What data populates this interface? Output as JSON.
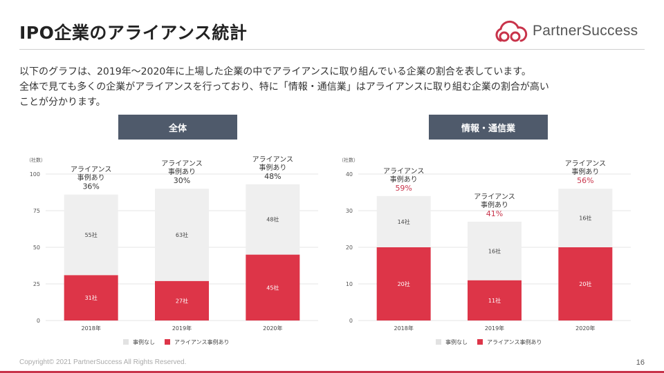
{
  "header": {
    "title": "IPO企業のアライアンス統計"
  },
  "logo": {
    "text": "PartnerSuccess"
  },
  "description": {
    "lines": [
      "以下のグラフは、2019年〜2020年に上場した企業の中でアライアンスに取り組んでいる企業の割合を表しています。",
      "全体で見ても多くの企業がアライアンスを行っており、特に「情報・通信業」はアライアンスに取り組む企業の割合が高い",
      "ことが分かります。"
    ]
  },
  "colors": {
    "alliance": "#dd3548",
    "none": "#efefef",
    "header_bg": "#4f5a6b",
    "accent": "#c8334a"
  },
  "chart_data": [
    {
      "type": "bar",
      "stacked": true,
      "title": "全体",
      "unit_label": "（社数）",
      "categories": [
        "2018年",
        "2019年",
        "2020年"
      ],
      "series": [
        {
          "name": "アライアンス事例あり",
          "values": [
            31,
            27,
            45
          ],
          "labels": [
            "31社",
            "27社",
            "45社"
          ]
        },
        {
          "name": "事例なし",
          "values": [
            55,
            63,
            48
          ],
          "labels": [
            "55社",
            "63社",
            "48社"
          ]
        }
      ],
      "annotations": [
        {
          "text": "アライアンス\n事例あり",
          "pct": "36%"
        },
        {
          "text": "アライアンス\n事例あり",
          "pct": "30%"
        },
        {
          "text": "アライアンス\n事例あり",
          "pct": "48%"
        }
      ],
      "pct_color": "#333333",
      "yticks": [
        0,
        25,
        50,
        75,
        100
      ],
      "ylim": [
        0,
        100
      ],
      "legend": [
        "事例なし",
        "アライアンス事例あり"
      ]
    },
    {
      "type": "bar",
      "stacked": true,
      "title": "情報・通信業",
      "unit_label": "（社数）",
      "categories": [
        "2018年",
        "2019年",
        "2020年"
      ],
      "series": [
        {
          "name": "アライアンス事例あり",
          "values": [
            20,
            11,
            20
          ],
          "labels": [
            "20社",
            "11社",
            "20社"
          ]
        },
        {
          "name": "事例なし",
          "values": [
            14,
            16,
            16
          ],
          "labels": [
            "14社",
            "16社",
            "16社"
          ]
        }
      ],
      "annotations": [
        {
          "text": "アライアンス\n事例あり",
          "pct": "59%"
        },
        {
          "text": "アライアンス\n事例あり",
          "pct": "41%"
        },
        {
          "text": "アライアンス\n事例あり",
          "pct": "56%"
        }
      ],
      "pct_color": "#c8334a",
      "yticks": [
        0,
        10,
        20,
        30,
        40
      ],
      "ylim": [
        0,
        40
      ],
      "legend": [
        "事例なし",
        "アライアンス事例あり"
      ]
    }
  ],
  "footer": {
    "copyright": "Copyright© 2021 PartnerSuccess All Rights Reserved.",
    "page": "16"
  }
}
